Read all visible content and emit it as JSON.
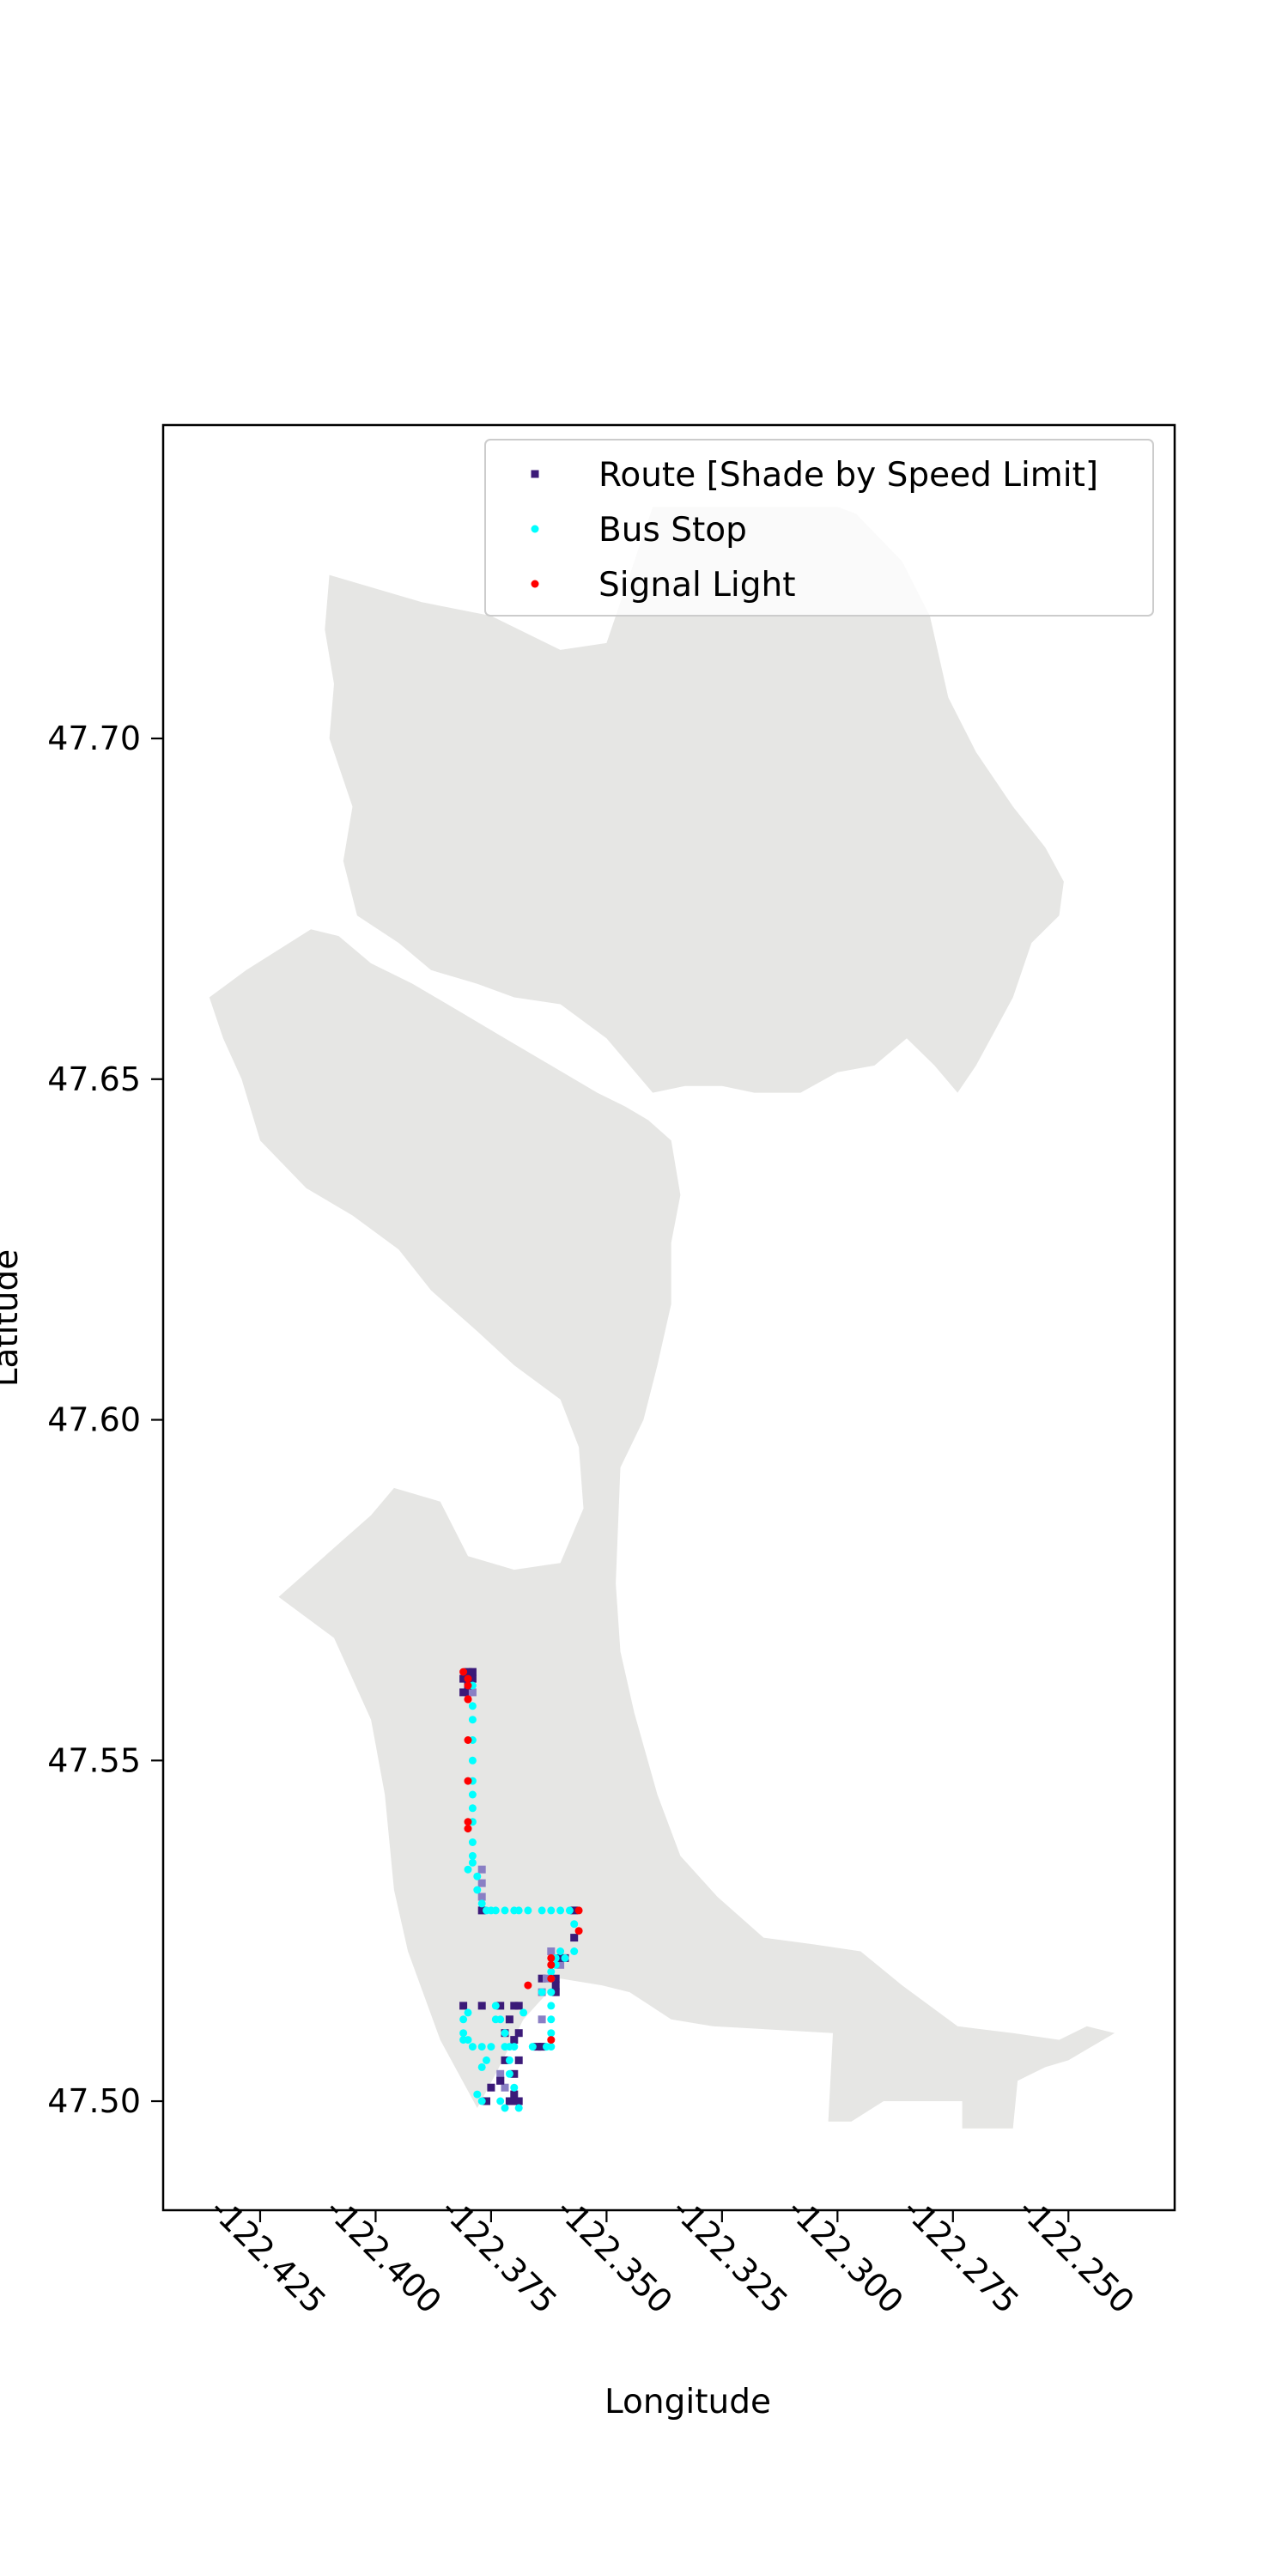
{
  "chart_data": {
    "type": "scatter",
    "title": "",
    "xlabel": "Longitude",
    "ylabel": "Latitude",
    "xlim": [
      -122.446,
      -122.227
    ],
    "ylim": [
      47.484,
      47.746
    ],
    "xticks": [
      -122.425,
      -122.4,
      -122.375,
      -122.35,
      -122.325,
      -122.3,
      -122.275,
      -122.25
    ],
    "xtick_labels": [
      "-122.425",
      "-122.400",
      "-122.375",
      "-122.350",
      "-122.325",
      "-122.300",
      "-122.275",
      "-122.250"
    ],
    "yticks": [
      47.5,
      47.55,
      47.6,
      47.65,
      47.7
    ],
    "ytick_labels": [
      "47.50",
      "47.55",
      "47.60",
      "47.65",
      "47.70"
    ],
    "grid": false,
    "legend_position": "upper-right",
    "basemap_color": "#e6e6e4",
    "colors": {
      "route": "#3b1a78",
      "route_light": "#8a7fc4",
      "bus_stop": "#00ffff",
      "signal": "#ff0000"
    },
    "basemap_polygons": [
      [
        [
          -122.41,
          47.724
        ],
        [
          -122.39,
          47.72
        ],
        [
          -122.375,
          47.718
        ],
        [
          -122.36,
          47.713
        ],
        [
          -122.35,
          47.714
        ],
        [
          -122.34,
          47.734
        ],
        [
          -122.32,
          47.734
        ],
        [
          -122.3,
          47.734
        ],
        [
          -122.296,
          47.733
        ],
        [
          -122.286,
          47.726
        ],
        [
          -122.28,
          47.718
        ],
        [
          -122.276,
          47.706
        ],
        [
          -122.27,
          47.698
        ],
        [
          -122.262,
          47.69
        ],
        [
          -122.255,
          47.684
        ],
        [
          -122.251,
          47.679
        ],
        [
          -122.252,
          47.674
        ],
        [
          -122.258,
          47.67
        ],
        [
          -122.262,
          47.662
        ],
        [
          -122.266,
          47.657
        ],
        [
          -122.27,
          47.652
        ],
        [
          -122.274,
          47.648
        ],
        [
          -122.279,
          47.652
        ],
        [
          -122.285,
          47.656
        ],
        [
          -122.292,
          47.652
        ],
        [
          -122.3,
          47.651
        ],
        [
          -122.308,
          47.648
        ],
        [
          -122.318,
          47.648
        ],
        [
          -122.325,
          47.649
        ],
        [
          -122.333,
          47.649
        ],
        [
          -122.34,
          47.648
        ],
        [
          -122.35,
          47.656
        ],
        [
          -122.36,
          47.661
        ],
        [
          -122.37,
          47.662
        ],
        [
          -122.378,
          47.664
        ],
        [
          -122.388,
          47.666
        ],
        [
          -122.395,
          47.67
        ],
        [
          -122.404,
          47.674
        ],
        [
          -122.407,
          47.682
        ],
        [
          -122.405,
          47.69
        ],
        [
          -122.41,
          47.7
        ],
        [
          -122.409,
          47.708
        ],
        [
          -122.411,
          47.716
        ]
      ],
      [
        [
          -122.436,
          47.662
        ],
        [
          -122.428,
          47.666
        ],
        [
          -122.421,
          47.669
        ],
        [
          -122.414,
          47.672
        ],
        [
          -122.408,
          47.671
        ],
        [
          -122.401,
          47.667
        ],
        [
          -122.392,
          47.664
        ],
        [
          -122.382,
          47.66
        ],
        [
          -122.372,
          47.656
        ],
        [
          -122.362,
          47.652
        ],
        [
          -122.352,
          47.648
        ],
        [
          -122.346,
          47.646
        ],
        [
          -122.341,
          47.644
        ],
        [
          -122.336,
          47.641
        ],
        [
          -122.334,
          47.633
        ],
        [
          -122.336,
          47.626
        ],
        [
          -122.336,
          47.617
        ],
        [
          -122.339,
          47.608
        ],
        [
          -122.342,
          47.6
        ],
        [
          -122.347,
          47.593
        ],
        [
          -122.348,
          47.576
        ],
        [
          -122.347,
          47.566
        ],
        [
          -122.344,
          47.557
        ],
        [
          -122.339,
          47.545
        ],
        [
          -122.334,
          47.536
        ],
        [
          -122.326,
          47.53
        ],
        [
          -122.316,
          47.524
        ],
        [
          -122.305,
          47.523
        ],
        [
          -122.295,
          47.522
        ],
        [
          -122.286,
          47.517
        ],
        [
          -122.274,
          47.511
        ],
        [
          -122.262,
          47.51
        ],
        [
          -122.252,
          47.509
        ],
        [
          -122.246,
          47.511
        ],
        [
          -122.24,
          47.51
        ],
        [
          -122.25,
          47.506
        ],
        [
          -122.255,
          47.505
        ],
        [
          -122.261,
          47.503
        ],
        [
          -122.262,
          47.496
        ],
        [
          -122.273,
          47.496
        ],
        [
          -122.273,
          47.5
        ],
        [
          -122.29,
          47.5
        ],
        [
          -122.297,
          47.497
        ],
        [
          -122.302,
          47.497
        ],
        [
          -122.301,
          47.51
        ],
        [
          -122.327,
          47.511
        ],
        [
          -122.336,
          47.512
        ],
        [
          -122.345,
          47.516
        ],
        [
          -122.351,
          47.517
        ],
        [
          -122.36,
          47.518
        ],
        [
          -122.368,
          47.512
        ],
        [
          -122.374,
          47.504
        ],
        [
          -122.378,
          47.499
        ],
        [
          -122.386,
          47.509
        ],
        [
          -122.393,
          47.522
        ],
        [
          -122.396,
          47.531
        ],
        [
          -122.398,
          47.545
        ],
        [
          -122.401,
          47.556
        ],
        [
          -122.409,
          47.568
        ],
        [
          -122.421,
          47.574
        ],
        [
          -122.411,
          47.58
        ],
        [
          -122.401,
          47.586
        ],
        [
          -122.396,
          47.59
        ],
        [
          -122.386,
          47.588
        ],
        [
          -122.38,
          47.58
        ],
        [
          -122.37,
          47.578
        ],
        [
          -122.36,
          47.579
        ],
        [
          -122.355,
          47.587
        ],
        [
          -122.356,
          47.596
        ],
        [
          -122.36,
          47.603
        ],
        [
          -122.37,
          47.608
        ],
        [
          -122.378,
          47.613
        ],
        [
          -122.388,
          47.619
        ],
        [
          -122.395,
          47.625
        ],
        [
          -122.405,
          47.63
        ],
        [
          -122.415,
          47.634
        ],
        [
          -122.425,
          47.641
        ],
        [
          -122.429,
          47.65
        ],
        [
          -122.433,
          47.656
        ]
      ]
    ],
    "series": [
      {
        "name": "Route [Shade by Speed Limit]",
        "marker": "square",
        "x": [
          -122.38,
          -122.379,
          -122.379,
          -122.38,
          -122.38,
          -122.381,
          -122.38,
          -122.379,
          -122.381,
          -122.38,
          -122.377,
          -122.377,
          -122.377,
          -122.377,
          -122.381,
          -122.377,
          -122.373,
          -122.369,
          -122.369,
          -122.369,
          -122.372,
          -122.373,
          -122.376,
          -122.375,
          -122.373,
          -122.372,
          -122.371,
          -122.37,
          -122.37,
          -122.37,
          -122.369,
          -122.37,
          -122.371,
          -122.372,
          -122.373,
          -122.37,
          -122.365,
          -122.364,
          -122.364,
          -122.364,
          -122.364,
          -122.361,
          -122.361,
          -122.361,
          -122.36,
          -122.36,
          -122.359,
          -122.361,
          -122.363,
          -122.362,
          -122.357,
          -122.357
        ],
        "y": [
          47.563,
          47.563,
          47.562,
          47.562,
          47.561,
          47.56,
          47.56,
          47.56,
          47.562,
          47.561,
          47.534,
          47.532,
          47.53,
          47.528,
          47.514,
          47.514,
          47.514,
          47.514,
          47.51,
          47.506,
          47.506,
          47.503,
          47.5,
          47.502,
          47.504,
          47.51,
          47.512,
          47.509,
          47.504,
          47.501,
          47.5,
          47.5,
          47.5,
          47.502,
          47.503,
          47.514,
          47.508,
          47.512,
          47.516,
          47.518,
          47.508,
          47.516,
          47.517,
          47.518,
          47.52,
          47.521,
          47.521,
          47.516,
          47.518,
          47.522,
          47.524,
          47.528
        ],
        "shade": [
          0,
          0,
          0,
          0,
          1,
          0,
          0,
          1,
          0,
          0,
          1,
          1,
          1,
          0,
          0,
          0,
          0,
          0,
          0,
          0,
          0,
          0,
          0,
          0,
          1,
          0,
          0,
          0,
          0,
          0,
          0,
          0,
          0,
          1,
          0,
          0,
          0,
          1,
          1,
          0,
          0,
          1,
          0,
          0,
          1,
          0,
          0,
          0,
          1,
          1,
          0,
          0
        ]
      },
      {
        "name": "Bus Stop",
        "marker": "circle",
        "x": [
          -122.379,
          -122.379,
          -122.379,
          -122.379,
          -122.379,
          -122.379,
          -122.379,
          -122.379,
          -122.379,
          -122.379,
          -122.379,
          -122.38,
          -122.379,
          -122.378,
          -122.378,
          -122.377,
          -122.376,
          -122.375,
          -122.374,
          -122.372,
          -122.37,
          -122.369,
          -122.367,
          -122.364,
          -122.362,
          -122.36,
          -122.358,
          -122.357,
          -122.357,
          -122.359,
          -122.361,
          -122.362,
          -122.38,
          -122.381,
          -122.381,
          -122.381,
          -122.38,
          -122.379,
          -122.377,
          -122.375,
          -122.372,
          -122.37,
          -122.366,
          -122.363,
          -122.362,
          -122.364,
          -122.374,
          -122.376,
          -122.377,
          -122.378,
          -122.377,
          -122.373,
          -122.372,
          -122.369,
          -122.37,
          -122.371,
          -122.371,
          -122.371,
          -122.372,
          -122.373,
          -122.374,
          -122.368,
          -122.362,
          -122.362,
          -122.362,
          -122.362,
          -122.362,
          -122.361,
          -122.36
        ],
        "y": [
          47.561,
          47.558,
          47.556,
          47.553,
          47.55,
          47.547,
          47.545,
          47.543,
          47.541,
          47.538,
          47.536,
          47.534,
          47.535,
          47.533,
          47.531,
          47.529,
          47.528,
          47.528,
          47.528,
          47.528,
          47.528,
          47.528,
          47.528,
          47.528,
          47.528,
          47.528,
          47.528,
          47.526,
          47.522,
          47.521,
          47.52,
          47.519,
          47.513,
          47.512,
          47.51,
          47.509,
          47.509,
          47.508,
          47.508,
          47.508,
          47.508,
          47.508,
          47.508,
          47.508,
          47.508,
          47.516,
          47.512,
          47.506,
          47.505,
          47.501,
          47.5,
          47.5,
          47.499,
          47.499,
          47.502,
          47.504,
          47.506,
          47.508,
          47.51,
          47.512,
          47.514,
          47.513,
          47.51,
          47.512,
          47.514,
          47.516,
          47.518,
          47.521,
          47.522
        ],
        "values": [
          8,
          8,
          8,
          8,
          8,
          8,
          8,
          8,
          8,
          8,
          8,
          8,
          8,
          8,
          8,
          8,
          8,
          8,
          8,
          8,
          8,
          8,
          8,
          8,
          8,
          8,
          8,
          8,
          8,
          8,
          8,
          8,
          8,
          8,
          8,
          8,
          8,
          8,
          8,
          8,
          8,
          8,
          8,
          8,
          8,
          8,
          8,
          8,
          8,
          8,
          8,
          8,
          8,
          8,
          8,
          8,
          8,
          8,
          8,
          8,
          8,
          8,
          8,
          8,
          8,
          8,
          8,
          8,
          8
        ]
      },
      {
        "name": "Signal Light",
        "marker": "circle",
        "x": [
          -122.381,
          -122.38,
          -122.38,
          -122.38,
          -122.38,
          -122.38,
          -122.38,
          -122.38,
          -122.38,
          -122.356,
          -122.356,
          -122.362,
          -122.362,
          -122.362,
          -122.362,
          -122.367
        ],
        "y": [
          47.563,
          47.562,
          47.561,
          47.559,
          47.553,
          47.547,
          47.541,
          47.54,
          47.559,
          47.528,
          47.525,
          47.521,
          47.52,
          47.518,
          47.509,
          47.517
        ],
        "values": [
          8,
          8,
          8,
          8,
          8,
          8,
          8,
          8,
          8,
          8,
          8,
          8,
          8,
          8,
          8,
          8
        ]
      }
    ]
  }
}
